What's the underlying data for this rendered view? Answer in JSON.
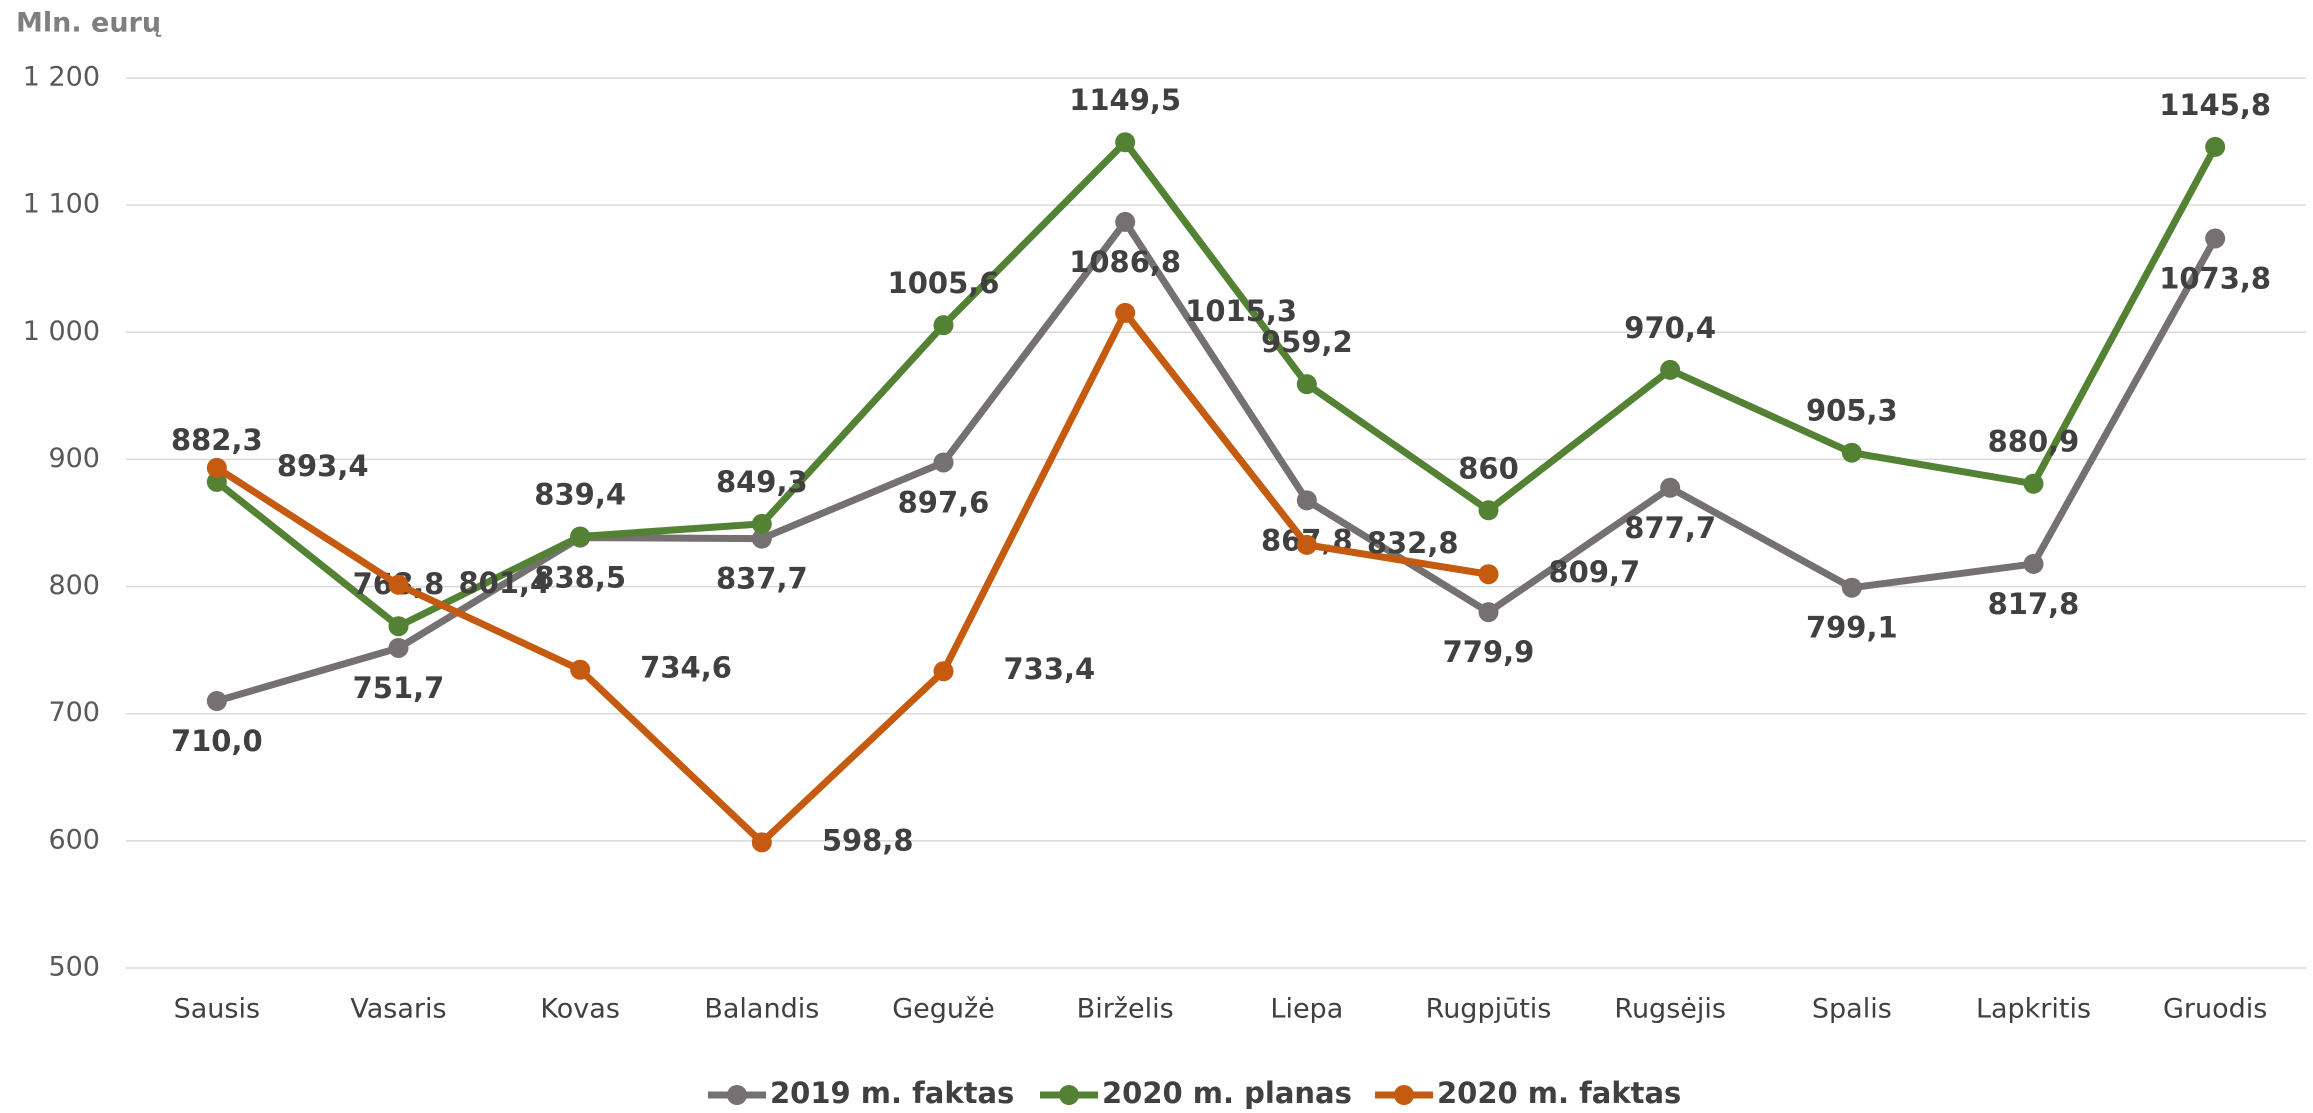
{
  "chart_data": {
    "type": "line",
    "y_label": "Mln. eurų",
    "categories": [
      "Sausis",
      "Vasaris",
      "Kovas",
      "Balandis",
      "Gegužė",
      "Birželis",
      "Liepa",
      "Rugpjūtis",
      "Rugsėjis",
      "Spalis",
      "Lapkritis",
      "Gruodis"
    ],
    "series": [
      {
        "name": "2019 m. faktas",
        "color": "#767171",
        "values": [
          710.0,
          751.7,
          838.5,
          837.7,
          897.6,
          1086.8,
          867.8,
          779.9,
          877.7,
          799.1,
          817.8,
          1073.8
        ],
        "value_labels": [
          "710,0",
          "751,7",
          "838,5",
          "837,7",
          "897,6",
          "1086,8",
          "867,8",
          "779,9",
          "877,7",
          "799,1",
          "817,8",
          "1073,8"
        ]
      },
      {
        "name": "2020 m. planas",
        "color": "#548235",
        "values": [
          882.3,
          768.8,
          839.4,
          849.3,
          1005.6,
          1149.5,
          959.2,
          860,
          970.4,
          905.3,
          880.9,
          1145.8
        ],
        "value_labels": [
          "882,3",
          "768,8",
          "839,4",
          "849,3",
          "1005,6",
          "1149,5",
          "959,2",
          "860",
          "970,4",
          "905,3",
          "880,9",
          "1145,8"
        ]
      },
      {
        "name": "2020 m. faktas",
        "color": "#c55a11",
        "values": [
          893.4,
          801.4,
          734.6,
          598.8,
          733.4,
          1015.3,
          832.8,
          809.7,
          null,
          null,
          null,
          null
        ],
        "value_labels": [
          "893,4",
          "801,4",
          "734,6",
          "598,8",
          "733,4",
          "1015,3",
          "832,8",
          "809,7",
          null,
          null,
          null,
          null
        ]
      }
    ],
    "ylim": [
      500,
      1200
    ],
    "yticks": [
      500,
      600,
      700,
      800,
      900,
      {
        "value": 1000,
        "label": "1 000"
      },
      {
        "value": 1100,
        "label": "1 100"
      },
      {
        "value": 1200,
        "label": "1 200"
      }
    ],
    "grid": true,
    "legend": "bottom"
  }
}
